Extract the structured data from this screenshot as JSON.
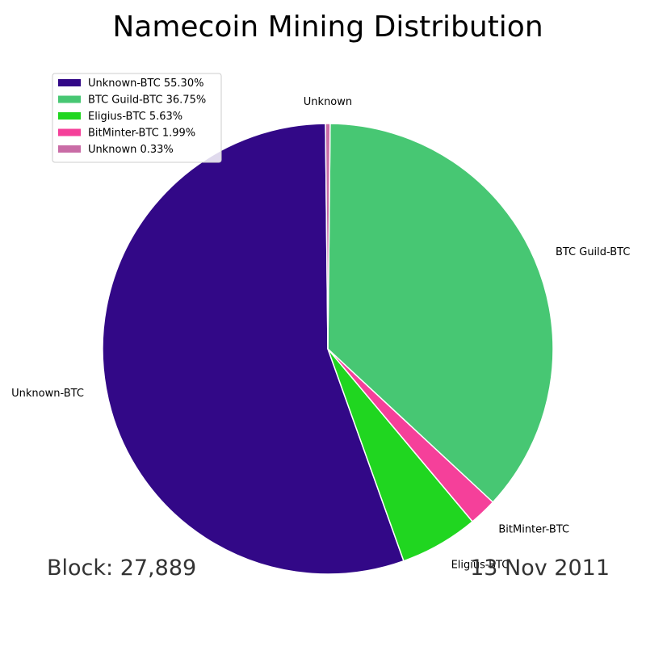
{
  "chart_data": {
    "type": "pie",
    "title": "Namecoin Mining Distribution",
    "slices": [
      {
        "label": "Unknown-BTC",
        "legend": "Unknown-BTC 55.30%",
        "value": 55.3,
        "color": "#320887"
      },
      {
        "label": "BTC Guild-BTC",
        "legend": "BTC Guild-BTC 36.75%",
        "value": 36.75,
        "color": "#47c773"
      },
      {
        "label": "Eligius-BTC",
        "legend": "Eligius-BTC 5.63%",
        "value": 5.63,
        "color": "#20d620"
      },
      {
        "label": "BitMinter-BTC",
        "legend": "BitMinter-BTC 1.99%",
        "value": 1.99,
        "color": "#f5409a"
      },
      {
        "label": "Unknown",
        "legend": "Unknown 0.33%",
        "value": 0.33,
        "color": "#c96ca6"
      }
    ],
    "legend_position": "top-left"
  },
  "footer": {
    "block": "Block: 27,889",
    "date": "13 Nov 2011"
  }
}
